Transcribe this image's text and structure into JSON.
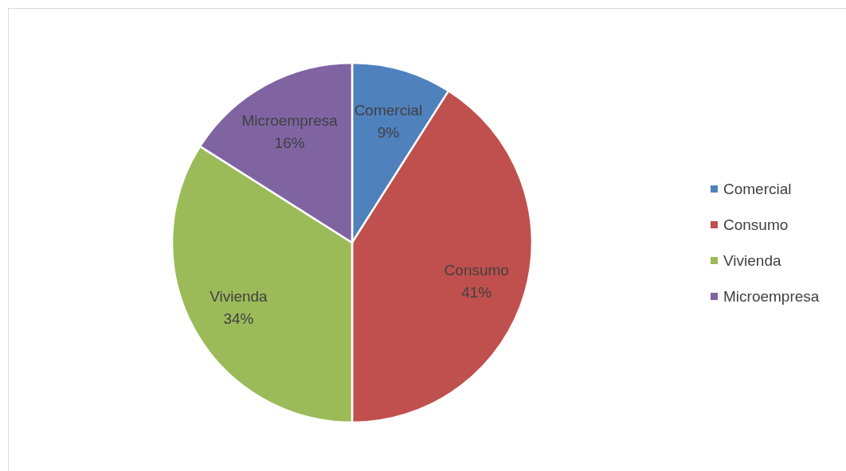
{
  "chart_data": {
    "type": "pie",
    "categories": [
      "Comercial",
      "Consumo",
      "Vivienda",
      "Microempresa"
    ],
    "values": [
      9,
      41,
      34,
      16
    ],
    "colors": [
      "#4f81bd",
      "#c0504d",
      "#9bbb59",
      "#8064a2"
    ],
    "value_labels": [
      "9%",
      "41%",
      "34%",
      "16%"
    ],
    "legend": "right"
  }
}
